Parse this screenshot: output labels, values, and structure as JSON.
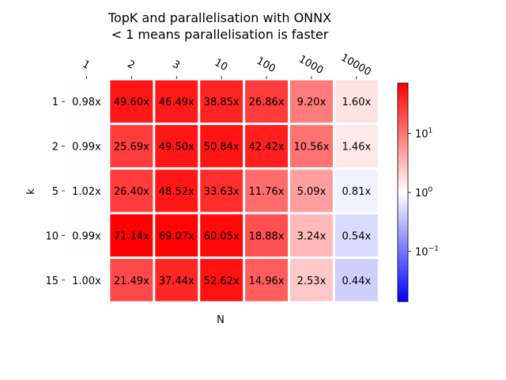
{
  "chart_data": {
    "type": "heatmap",
    "title_lines": [
      "TopK and parallelisation with ONNX",
      "< 1 means parallelisation is faster"
    ],
    "xlabel": "N",
    "ylabel": "k",
    "x_categories": [
      "1",
      "2",
      "3",
      "10",
      "100",
      "1000",
      "10000"
    ],
    "y_categories": [
      "1",
      "2",
      "5",
      "10",
      "15"
    ],
    "values": [
      [
        0.98,
        49.6,
        46.49,
        38.85,
        26.86,
        9.2,
        1.6
      ],
      [
        0.99,
        25.69,
        49.5,
        50.84,
        42.42,
        10.56,
        1.46
      ],
      [
        1.02,
        26.4,
        48.52,
        33.63,
        11.76,
        5.09,
        0.81
      ],
      [
        0.99,
        71.14,
        69.07,
        60.05,
        18.88,
        3.24,
        0.54
      ],
      [
        1.0,
        21.49,
        37.44,
        52.62,
        14.96,
        2.53,
        0.44
      ]
    ],
    "cell_labels": [
      [
        "0.98x",
        "49.60x",
        "46.49x",
        "38.85x",
        "26.86x",
        "9.20x",
        "1.60x"
      ],
      [
        "0.99x",
        "25.69x",
        "49.50x",
        "50.84x",
        "42.42x",
        "10.56x",
        "1.46x"
      ],
      [
        "1.02x",
        "26.40x",
        "48.52x",
        "33.63x",
        "11.76x",
        "5.09x",
        "0.81x"
      ],
      [
        "0.99x",
        "71.14x",
        "69.07x",
        "60.05x",
        "18.88x",
        "3.24x",
        "0.54x"
      ],
      [
        "1.00x",
        "21.49x",
        "37.44x",
        "52.62x",
        "14.96x",
        "2.53x",
        "0.44x"
      ]
    ],
    "colormap": "bwr",
    "color_scale": "log",
    "color_range": [
      0.0141,
      71.14
    ],
    "colorbar": {
      "ticks": [
        {
          "value": 10,
          "base": "10",
          "exp": "1"
        },
        {
          "value": 1,
          "base": "10",
          "exp": "0"
        },
        {
          "value": 0.1,
          "base": "10",
          "exp": "−1"
        }
      ]
    },
    "colors": {
      "low": "#0000ff",
      "mid": "#ffffff",
      "high": "#ff0000"
    }
  }
}
